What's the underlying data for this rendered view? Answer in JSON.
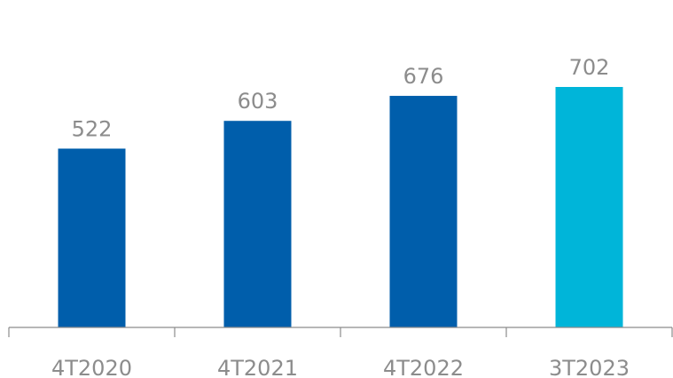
{
  "chart_data": {
    "type": "bar",
    "categories": [
      "4T2020",
      "4T2021",
      "4T2022",
      "3T2023"
    ],
    "values": [
      522,
      603,
      676,
      702
    ],
    "data_labels": [
      "522",
      "603",
      "676",
      "702"
    ],
    "title": "",
    "xlabel": "",
    "ylabel": "",
    "ylim": [
      0,
      702
    ],
    "grid": false,
    "legend": "none",
    "colors": {
      "bar": "#005eab",
      "highlight_bar": "#00b5d9",
      "label": "#8c8c8c",
      "axis": "#8c8c8c"
    },
    "highlight_index": 3
  }
}
